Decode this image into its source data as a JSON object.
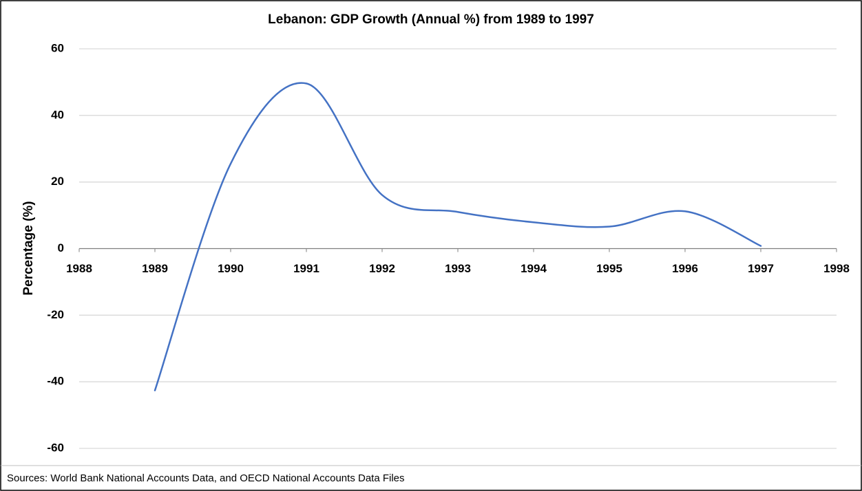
{
  "chart_data": {
    "type": "line",
    "title": "Lebanon: GDP Growth (Annual %) from 1989 to 1997",
    "y_label": "Percentage (%)",
    "source": "Sources: World Bank National Accounts Data, and OECD National Accounts Data Files",
    "x": [
      1989,
      1990,
      1991,
      1992,
      1993,
      1994,
      1995,
      1996,
      1997
    ],
    "series": [
      {
        "name": "GDP Growth",
        "color": "#4472c4",
        "values": [
          -42.6,
          25.5,
          49.6,
          16.1,
          11,
          7.9,
          6.6,
          11.2,
          0.8
        ]
      }
    ],
    "xlim": [
      1988,
      1998
    ],
    "xticks": [
      1988,
      1989,
      1990,
      1991,
      1992,
      1993,
      1994,
      1995,
      1996,
      1997,
      1998
    ],
    "ylim": [
      -60,
      60
    ],
    "yticks": [
      -60,
      -40,
      -20,
      0,
      20,
      40,
      60
    ],
    "grid": true,
    "smooth": true
  }
}
